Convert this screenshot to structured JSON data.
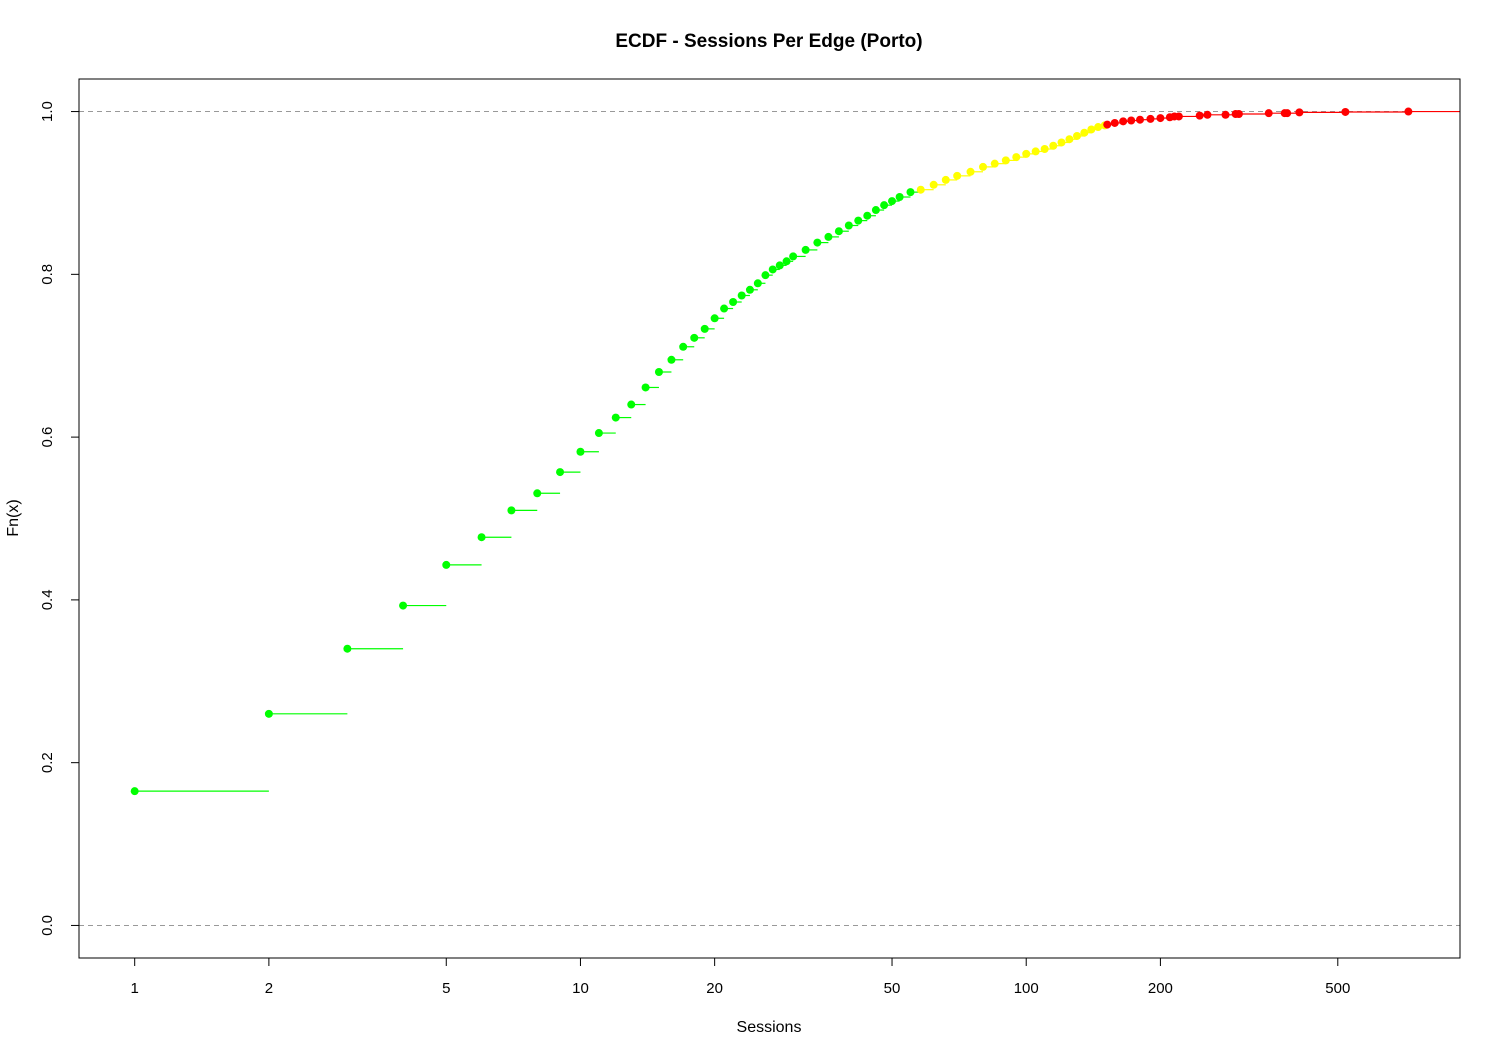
{
  "chart_data": {
    "type": "scatter",
    "title": "ECDF - Sessions Per Edge (Porto)",
    "xlabel": "Sessions",
    "ylabel": "Fn(x)",
    "x_scale": "log",
    "xlim": [
      0.75,
      940
    ],
    "ylim": [
      -0.04,
      1.04
    ],
    "x_ticks": [
      "1",
      "2",
      "5",
      "10",
      "20",
      "50",
      "100",
      "200",
      "500"
    ],
    "y_ticks": [
      "0.0",
      "0.2",
      "0.4",
      "0.6",
      "0.8",
      "1.0"
    ],
    "reference_lines": [
      0.0,
      1.0
    ],
    "grid": false,
    "colors": {
      "low": "#00ff00",
      "mid": "#ffff00",
      "high": "#ff0000",
      "axis": "#000000",
      "reference": "#999999"
    },
    "series": [
      {
        "color_key": "low",
        "x_range": [
          1,
          55
        ],
        "points": [
          [
            1,
            0.165
          ],
          [
            2,
            0.26
          ],
          [
            3,
            0.34
          ],
          [
            4,
            0.393
          ],
          [
            5,
            0.443
          ],
          [
            6,
            0.477
          ],
          [
            7,
            0.51
          ],
          [
            8,
            0.531
          ],
          [
            9,
            0.557
          ],
          [
            10,
            0.582
          ],
          [
            11,
            0.605
          ],
          [
            12,
            0.624
          ],
          [
            13,
            0.64
          ],
          [
            14,
            0.661
          ],
          [
            15,
            0.68
          ],
          [
            16,
            0.695
          ],
          [
            17,
            0.711
          ],
          [
            18,
            0.722
          ],
          [
            19,
            0.733
          ],
          [
            20,
            0.746
          ],
          [
            21,
            0.758
          ],
          [
            22,
            0.766
          ],
          [
            23,
            0.774
          ],
          [
            24,
            0.781
          ],
          [
            25,
            0.789
          ],
          [
            26,
            0.799
          ],
          [
            27,
            0.806
          ],
          [
            28,
            0.811
          ],
          [
            29,
            0.816
          ],
          [
            30,
            0.822
          ],
          [
            32,
            0.83
          ],
          [
            34,
            0.839
          ],
          [
            36,
            0.846
          ],
          [
            38,
            0.853
          ],
          [
            40,
            0.86
          ],
          [
            42,
            0.866
          ],
          [
            44,
            0.872
          ],
          [
            46,
            0.879
          ],
          [
            48,
            0.885
          ],
          [
            50,
            0.89
          ],
          [
            52,
            0.895
          ],
          [
            55,
            0.901
          ]
        ]
      },
      {
        "color_key": "mid",
        "x_range": [
          56,
          150
        ],
        "points": [
          [
            58,
            0.904
          ],
          [
            62,
            0.91
          ],
          [
            66,
            0.916
          ],
          [
            70,
            0.921
          ],
          [
            75,
            0.926
          ],
          [
            80,
            0.932
          ],
          [
            85,
            0.936
          ],
          [
            90,
            0.94
          ],
          [
            95,
            0.944
          ],
          [
            100,
            0.948
          ],
          [
            105,
            0.951
          ],
          [
            110,
            0.954
          ],
          [
            115,
            0.958
          ],
          [
            120,
            0.962
          ],
          [
            125,
            0.966
          ],
          [
            130,
            0.97
          ],
          [
            135,
            0.974
          ],
          [
            140,
            0.978
          ],
          [
            145,
            0.981
          ],
          [
            150,
            0.983
          ]
        ]
      },
      {
        "color_key": "high",
        "x_range": [
          152,
          720
        ],
        "points": [
          [
            152,
            0.984
          ],
          [
            158,
            0.986
          ],
          [
            165,
            0.988
          ],
          [
            172,
            0.989
          ],
          [
            180,
            0.99
          ],
          [
            190,
            0.991
          ],
          [
            200,
            0.992
          ],
          [
            210,
            0.993
          ],
          [
            215,
            0.994
          ],
          [
            220,
            0.994
          ],
          [
            245,
            0.995
          ],
          [
            255,
            0.996
          ],
          [
            280,
            0.996
          ],
          [
            295,
            0.997
          ],
          [
            300,
            0.997
          ],
          [
            350,
            0.998
          ],
          [
            380,
            0.998
          ],
          [
            385,
            0.998
          ],
          [
            410,
            0.999
          ],
          [
            520,
            0.9995
          ],
          [
            720,
            1.0
          ]
        ]
      }
    ]
  }
}
